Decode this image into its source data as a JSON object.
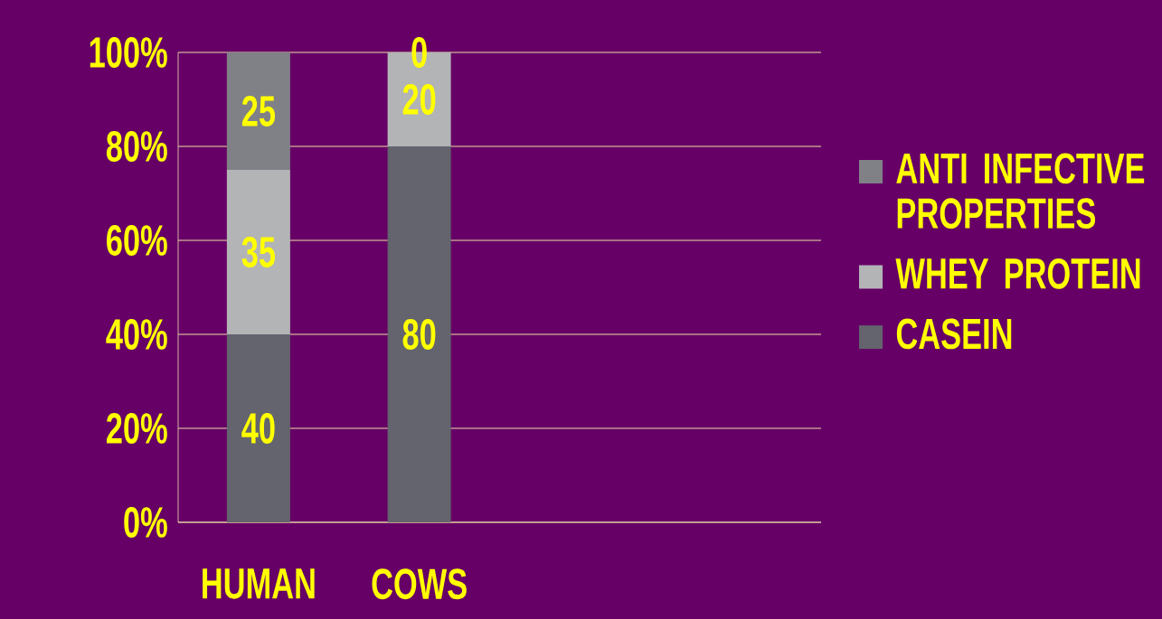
{
  "chart_data": {
    "type": "bar",
    "stacked": true,
    "categories": [
      "HUMAN",
      "COWS",
      null,
      null
    ],
    "series": [
      {
        "name": "CASEIN",
        "color": "#63646d",
        "values": [
          40,
          80,
          null,
          null
        ]
      },
      {
        "name": "WHEY PROTEIN",
        "color": "#b3b4b6",
        "values": [
          35,
          20,
          null,
          null
        ]
      },
      {
        "name": "ANTI INFECTIVE PROPERTIES",
        "color": "#808187",
        "values": [
          25,
          0,
          null,
          null
        ]
      }
    ],
    "ylim": [
      0,
      100
    ],
    "yticks": [
      {
        "value": 0,
        "label": "0%"
      },
      {
        "value": 20,
        "label": "20%"
      },
      {
        "value": 40,
        "label": "40%"
      },
      {
        "value": 60,
        "label": "60%"
      },
      {
        "value": 80,
        "label": "80%"
      },
      {
        "value": 100,
        "label": "100%"
      }
    ],
    "grid": "y",
    "legend": "right",
    "data_labels": true
  }
}
